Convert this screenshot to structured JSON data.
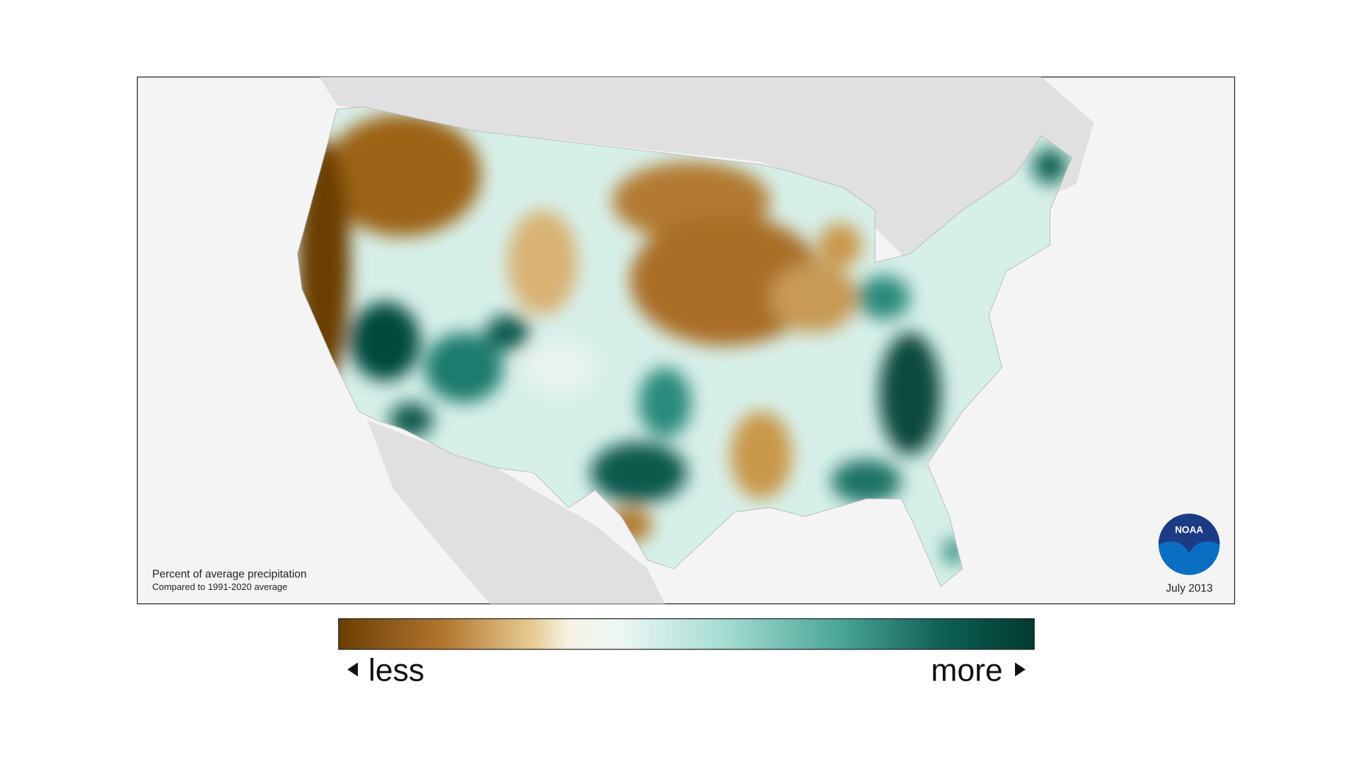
{
  "map": {
    "caption": {
      "title": "Percent of average precipitation",
      "subtitle": "Compared to 1991-2020 average"
    },
    "date": "July 2013",
    "logo": "NOAA"
  },
  "legend": {
    "low": "less",
    "high": "more"
  }
}
